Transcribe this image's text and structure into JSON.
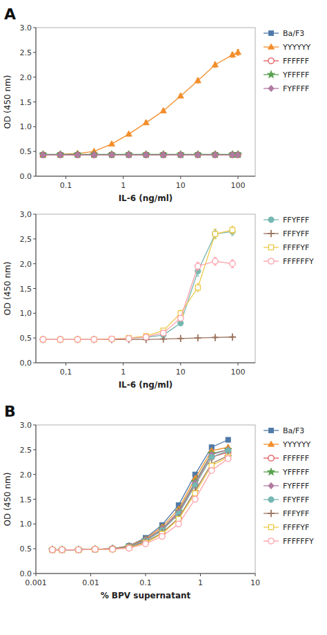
{
  "chart_data": [
    {
      "type": "line",
      "xlabel": "IL-6 (ng/ml)",
      "ylabel": "OD (450 nm)",
      "log": "x",
      "grid": false,
      "legend": "right",
      "line_style": "solid",
      "annotations": [
        "A"
      ],
      "xlim": [
        0.03,
        200
      ],
      "ylim": [
        0.0,
        3.0
      ],
      "xticks": [
        0.1,
        1,
        10,
        100
      ],
      "yticks": [
        {
          "value": 0.0,
          "label": "0.0"
        },
        0.5,
        {
          "value": 1.0,
          "label": "1.0"
        },
        1.5,
        {
          "value": 2.0,
          "label": "2.0"
        },
        2.5,
        {
          "value": 3.0,
          "label": "3.0"
        }
      ],
      "x": [
        0.04,
        0.08,
        0.16,
        0.31,
        0.63,
        1.25,
        2.5,
        5.0,
        10.0,
        20.0,
        40.0,
        80.0,
        100.0
      ],
      "series": [
        {
          "name": "Ba/F3",
          "marker": "square",
          "values": [
            0.43,
            0.43,
            0.43,
            0.43,
            0.43,
            0.43,
            0.43,
            0.43,
            0.43,
            0.43,
            0.43,
            0.43,
            0.43
          ],
          "errors": [
            0.01,
            0.01,
            0.01,
            0.01,
            0.01,
            0.01,
            0.01,
            0.01,
            0.01,
            0.01,
            0.01,
            0.01,
            0.01
          ]
        },
        {
          "name": "YYYYYY",
          "marker": "triangle",
          "values": [
            0.43,
            0.44,
            0.46,
            0.5,
            0.65,
            0.85,
            1.08,
            1.32,
            1.62,
            1.93,
            2.25,
            2.45,
            2.5
          ],
          "errors": [
            0.02,
            0.02,
            0.02,
            0.02,
            0.03,
            0.03,
            0.04,
            0.04,
            0.04,
            0.05,
            0.05,
            0.05,
            0.06
          ]
        },
        {
          "name": "FFFFFF",
          "marker": "circle-open",
          "values": [
            0.43,
            0.43,
            0.43,
            0.43,
            0.43,
            0.43,
            0.43,
            0.43,
            0.43,
            0.43,
            0.43,
            0.43,
            0.43
          ],
          "errors": [
            0.01,
            0.01,
            0.01,
            0.01,
            0.01,
            0.01,
            0.01,
            0.01,
            0.01,
            0.01,
            0.01,
            0.01,
            0.01
          ]
        },
        {
          "name": "YFFFFF",
          "marker": "star",
          "values": [
            0.44,
            0.44,
            0.44,
            0.44,
            0.44,
            0.44,
            0.44,
            0.44,
            0.44,
            0.44,
            0.44,
            0.44,
            0.44
          ],
          "errors": [
            0.01,
            0.01,
            0.01,
            0.01,
            0.01,
            0.01,
            0.01,
            0.01,
            0.01,
            0.01,
            0.01,
            0.01,
            0.01
          ]
        },
        {
          "name": "FYFFFF",
          "marker": "diamond",
          "values": [
            0.43,
            0.43,
            0.43,
            0.43,
            0.43,
            0.43,
            0.43,
            0.43,
            0.43,
            0.43,
            0.43,
            0.43,
            0.43
          ],
          "errors": [
            0.01,
            0.01,
            0.01,
            0.01,
            0.01,
            0.01,
            0.01,
            0.01,
            0.01,
            0.01,
            0.01,
            0.01,
            0.01
          ]
        }
      ]
    },
    {
      "type": "line",
      "xlabel": "IL-6 (ng/ml)",
      "ylabel": "OD (450 nm)",
      "log": "x",
      "grid": false,
      "legend": "right",
      "line_style": "solid",
      "xlim": [
        0.03,
        200
      ],
      "ylim": [
        0.0,
        3.0
      ],
      "xticks": [
        {
          "value": 0.1,
          "label": "0,1"
        },
        1,
        10,
        100
      ],
      "yticks": [
        {
          "value": 0.0,
          "label": "0,0"
        },
        {
          "value": 0.5,
          "label": "0,5"
        },
        {
          "value": 1.0,
          "label": "1,0"
        },
        {
          "value": 1.5,
          "label": "1,5"
        },
        {
          "value": 2.0,
          "label": "2,0"
        },
        {
          "value": 2.5,
          "label": "2,5"
        },
        {
          "value": 3.0,
          "label": "3,0"
        }
      ],
      "x": [
        0.04,
        0.08,
        0.16,
        0.31,
        0.63,
        1.25,
        2.5,
        5.0,
        10.0,
        20.0,
        40.0,
        80.0
      ],
      "series": [
        {
          "name": "FFYFFF",
          "marker": "circle",
          "values": [
            0.47,
            0.47,
            0.47,
            0.47,
            0.48,
            0.49,
            0.51,
            0.56,
            0.8,
            1.85,
            2.6,
            2.65
          ],
          "errors": [
            0.01,
            0.01,
            0.01,
            0.01,
            0.01,
            0.01,
            0.02,
            0.03,
            0.05,
            0.1,
            0.08,
            0.08
          ]
        },
        {
          "name": "FFFYFF",
          "marker": "plus",
          "values": [
            0.47,
            0.47,
            0.47,
            0.47,
            0.47,
            0.47,
            0.47,
            0.48,
            0.49,
            0.5,
            0.51,
            0.52
          ],
          "errors": [
            0.01,
            0.01,
            0.01,
            0.01,
            0.01,
            0.01,
            0.01,
            0.01,
            0.01,
            0.01,
            0.01,
            0.01
          ]
        },
        {
          "name": "FFFFYF",
          "marker": "square-open",
          "values": [
            0.47,
            0.47,
            0.47,
            0.47,
            0.48,
            0.5,
            0.54,
            0.65,
            1.0,
            1.52,
            2.6,
            2.68
          ],
          "errors": [
            0.01,
            0.01,
            0.01,
            0.01,
            0.01,
            0.02,
            0.03,
            0.04,
            0.06,
            0.08,
            0.1,
            0.08
          ]
        },
        {
          "name": "FFFFFFY",
          "marker": "circle-open",
          "values": [
            0.47,
            0.47,
            0.47,
            0.47,
            0.48,
            0.49,
            0.52,
            0.6,
            0.9,
            1.95,
            2.05,
            2.0
          ],
          "errors": [
            0.01,
            0.01,
            0.01,
            0.01,
            0.01,
            0.01,
            0.02,
            0.03,
            0.05,
            0.08,
            0.08,
            0.08
          ]
        }
      ]
    },
    {
      "type": "line",
      "xlabel": "% BPV supernatant",
      "ylabel": "OD (450 nm)",
      "log": "x",
      "grid": false,
      "legend": "right",
      "line_style": "solid",
      "annotations": [
        "B"
      ],
      "xlim": [
        0.001,
        10
      ],
      "ylim": [
        0.0,
        3.0
      ],
      "xticks": [
        0.001,
        0.01,
        0.1,
        1,
        10
      ],
      "yticks": [
        {
          "value": 0.0,
          "label": "0.0"
        },
        0.5,
        {
          "value": 1.0,
          "label": "1.0"
        },
        1.5,
        {
          "value": 2.0,
          "label": "2.0"
        },
        2.5,
        {
          "value": 3.0,
          "label": "3.0"
        }
      ],
      "x": [
        0.002,
        0.003,
        0.006,
        0.012,
        0.025,
        0.05,
        0.1,
        0.2,
        0.4,
        0.8,
        1.6,
        3.2
      ],
      "series": [
        {
          "name": "Ba/F3",
          "marker": "square",
          "values": [
            0.48,
            0.48,
            0.48,
            0.49,
            0.5,
            0.56,
            0.72,
            0.98,
            1.38,
            2.0,
            2.55,
            2.7
          ]
        },
        {
          "name": "YYYYYY",
          "marker": "triangle",
          "values": [
            0.48,
            0.48,
            0.48,
            0.49,
            0.5,
            0.56,
            0.7,
            0.94,
            1.3,
            1.92,
            2.48,
            2.55
          ]
        },
        {
          "name": "FFFFFF",
          "marker": "circle-open",
          "values": [
            0.48,
            0.48,
            0.48,
            0.49,
            0.5,
            0.54,
            0.67,
            0.88,
            1.22,
            1.8,
            2.35,
            2.45
          ]
        },
        {
          "name": "YFFFFF",
          "marker": "star",
          "values": [
            0.48,
            0.48,
            0.48,
            0.49,
            0.5,
            0.55,
            0.68,
            0.9,
            1.25,
            1.85,
            2.42,
            2.5
          ]
        },
        {
          "name": "FYFFFF",
          "marker": "diamond",
          "values": [
            0.48,
            0.48,
            0.48,
            0.49,
            0.5,
            0.55,
            0.68,
            0.9,
            1.24,
            1.83,
            2.4,
            2.5
          ]
        },
        {
          "name": "FFYFFF",
          "marker": "circle",
          "values": [
            0.48,
            0.48,
            0.48,
            0.49,
            0.49,
            0.54,
            0.66,
            0.87,
            1.2,
            1.78,
            2.35,
            2.48
          ]
        },
        {
          "name": "FFFYFF",
          "marker": "plus",
          "values": [
            0.48,
            0.48,
            0.48,
            0.49,
            0.49,
            0.53,
            0.64,
            0.82,
            1.12,
            1.67,
            2.22,
            2.38
          ]
        },
        {
          "name": "FFFFYF",
          "marker": "square-open",
          "values": [
            0.48,
            0.48,
            0.48,
            0.49,
            0.49,
            0.52,
            0.62,
            0.8,
            1.1,
            1.62,
            2.18,
            2.35
          ]
        },
        {
          "name": "FFFFFFY",
          "marker": "circle-open",
          "values": [
            0.48,
            0.48,
            0.48,
            0.49,
            0.49,
            0.51,
            0.6,
            0.75,
            1.0,
            1.5,
            2.08,
            2.32
          ]
        }
      ]
    }
  ]
}
